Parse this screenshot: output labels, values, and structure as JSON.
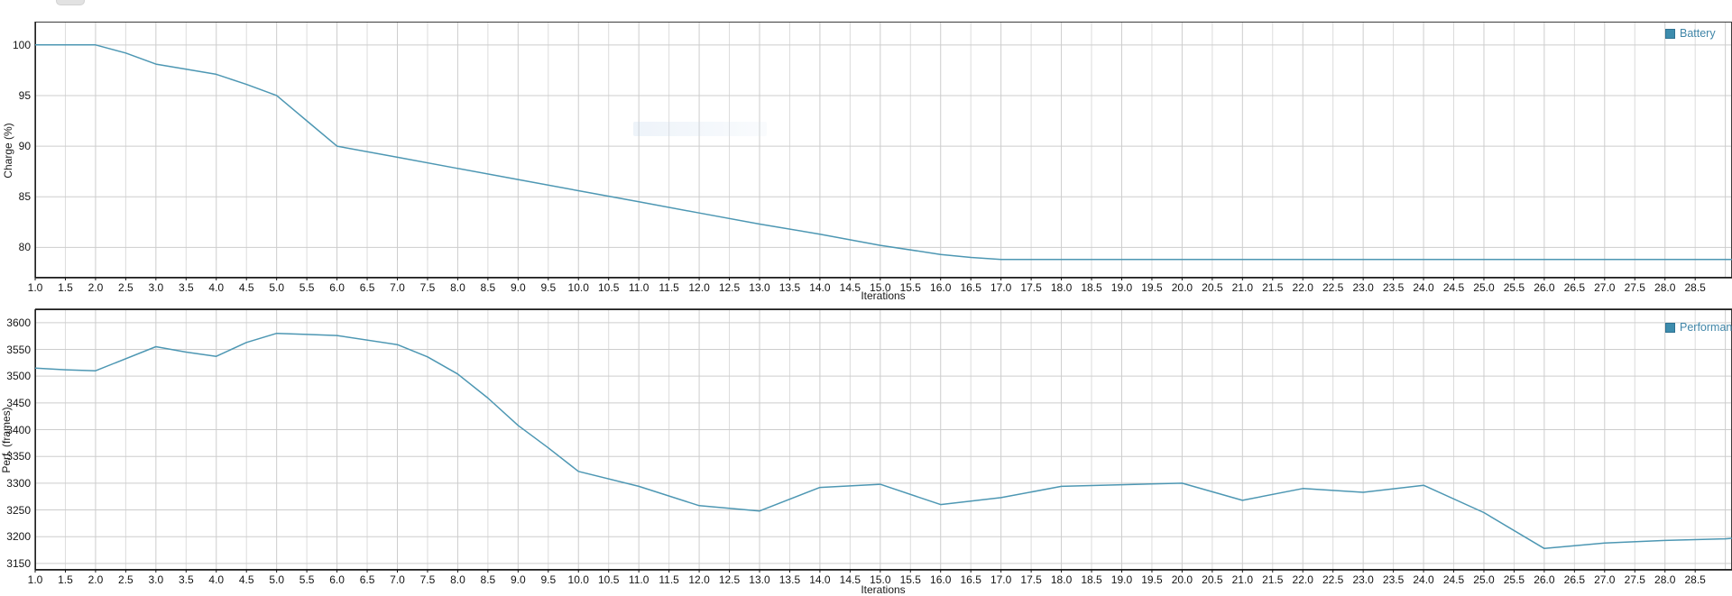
{
  "ui": {
    "background": "#ffffff",
    "grid_color_minor": "#dcdcdc",
    "grid_color_major": "#cdcdcd",
    "frame_color": "#3c3c3c",
    "axis_color": "#141414"
  },
  "chart_data": [
    {
      "type": "line",
      "title": "",
      "xlabel": "Iterations",
      "ylabel": "Charge (%)",
      "legend": [
        "Battery"
      ],
      "legend_position": "top-right",
      "line_color": "#4d97b3",
      "legend_text_color": "#4186a8",
      "grid": true,
      "xlim": [
        1.0,
        29.11
      ],
      "ylim": [
        77.0,
        102.3
      ],
      "yticks": [
        100,
        95,
        90,
        85,
        80
      ],
      "xticks": {
        "start": 1.0,
        "end": 28.5,
        "step": 0.5,
        "decimals": 1
      },
      "points": [
        [
          1,
          100
        ],
        [
          1.5,
          100
        ],
        [
          2,
          100
        ],
        [
          2.5,
          99.2
        ],
        [
          3,
          98.1
        ],
        [
          3.5,
          97.6
        ],
        [
          4,
          97.1
        ],
        [
          4.5,
          96.1
        ],
        [
          5,
          95
        ],
        [
          5.5,
          92.5
        ],
        [
          6,
          90
        ],
        [
          7,
          88.9
        ],
        [
          8,
          87.8
        ],
        [
          9,
          86.7
        ],
        [
          10,
          85.6
        ],
        [
          11,
          84.5
        ],
        [
          12,
          83.4
        ],
        [
          13,
          82.3
        ],
        [
          14,
          81.3
        ],
        [
          15,
          80.2
        ],
        [
          16,
          79.3
        ],
        [
          16.5,
          79
        ],
        [
          17,
          78.8
        ],
        [
          18,
          78.8
        ],
        [
          19,
          78.8
        ],
        [
          20,
          78.8
        ],
        [
          21,
          78.8
        ],
        [
          22,
          78.8
        ],
        [
          23,
          78.8
        ],
        [
          24,
          78.8
        ],
        [
          25,
          78.8
        ],
        [
          26,
          78.8
        ],
        [
          27,
          78.8
        ],
        [
          28,
          78.8
        ],
        [
          29.11,
          78.8
        ]
      ]
    },
    {
      "type": "line",
      "title": "",
      "xlabel": "Iterations",
      "ylabel": "Perf. (frames)",
      "legend": [
        "Performance"
      ],
      "legend_position": "top-right",
      "line_color": "#4d97b3",
      "legend_text_color": "#4186a8",
      "grid": true,
      "xlim": [
        1.0,
        29.11
      ],
      "ylim": [
        3138,
        3625
      ],
      "yticks": [
        3600,
        3550,
        3500,
        3450,
        3400,
        3350,
        3300,
        3250,
        3200,
        3150
      ],
      "xticks": {
        "start": 1.0,
        "end": 28.5,
        "step": 0.5,
        "decimals": 1
      },
      "points": [
        [
          1,
          3515
        ],
        [
          1.5,
          3512
        ],
        [
          2,
          3510
        ],
        [
          3,
          3555
        ],
        [
          3.5,
          3545
        ],
        [
          4,
          3537
        ],
        [
          4.5,
          3563
        ],
        [
          5,
          3580
        ],
        [
          5.5,
          3578
        ],
        [
          6,
          3576
        ],
        [
          7,
          3559
        ],
        [
          7.5,
          3536
        ],
        [
          8,
          3504
        ],
        [
          8.5,
          3459
        ],
        [
          9,
          3408
        ],
        [
          9.5,
          3366
        ],
        [
          10,
          3322
        ],
        [
          11,
          3294
        ],
        [
          12,
          3258
        ],
        [
          13,
          3248
        ],
        [
          14,
          3292
        ],
        [
          15,
          3298
        ],
        [
          16,
          3260
        ],
        [
          17,
          3273
        ],
        [
          18,
          3294
        ],
        [
          19,
          3297
        ],
        [
          20,
          3300
        ],
        [
          21,
          3268
        ],
        [
          22,
          3290
        ],
        [
          23,
          3283
        ],
        [
          24,
          3296
        ],
        [
          25,
          3245
        ],
        [
          26,
          3178
        ],
        [
          27,
          3188
        ],
        [
          28,
          3193
        ],
        [
          29,
          3196
        ],
        [
          29.11,
          3197
        ]
      ]
    }
  ]
}
